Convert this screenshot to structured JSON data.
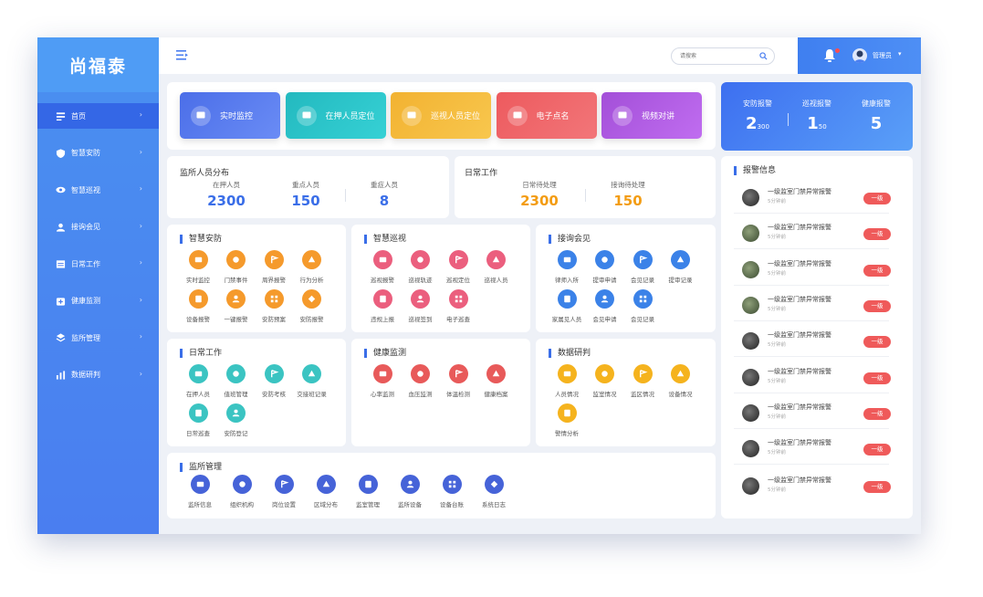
{
  "app": {
    "title": "尚福泰"
  },
  "sidebar": {
    "items": [
      {
        "label": "首页",
        "icon": "home-icon"
      },
      {
        "label": "智慧安防",
        "icon": "shield-icon"
      },
      {
        "label": "智慧巡视",
        "icon": "eye-icon"
      },
      {
        "label": "接询会见",
        "icon": "user-icon"
      },
      {
        "label": "日常工作",
        "icon": "calendar-icon"
      },
      {
        "label": "健康监测",
        "icon": "health-icon"
      },
      {
        "label": "监所管理",
        "icon": "layers-icon"
      },
      {
        "label": "数据研判",
        "icon": "chart-icon"
      }
    ]
  },
  "topbar": {
    "search_placeholder": "请搜索",
    "username": "管理员"
  },
  "quick": [
    {
      "label": "实时监控",
      "c1": "#4b6ee8",
      "c2": "#6a8cf5"
    },
    {
      "label": "在押人员定位",
      "c1": "#23b9bf",
      "c2": "#36d1d5"
    },
    {
      "label": "巡视人员定位",
      "c1": "#f2b231",
      "c2": "#f8c74e"
    },
    {
      "label": "电子点名",
      "c1": "#ed5a5e",
      "c2": "#f27679"
    },
    {
      "label": "视频对讲",
      "c1": "#a34fd8",
      "c2": "#c06df0"
    }
  ],
  "reports": [
    {
      "label": "安防报警",
      "value": "2",
      "sub": "300"
    },
    {
      "label": "巡视报警",
      "value": "1",
      "sub": "50"
    },
    {
      "label": "健康报警",
      "value": "5",
      "sub": ""
    }
  ],
  "distribution": {
    "title": "监所人员分布",
    "stats": [
      {
        "label": "在押人员",
        "value": "2300"
      },
      {
        "label": "重点人员",
        "value": "150"
      },
      {
        "label": "重症人员",
        "value": "8"
      }
    ]
  },
  "daily": {
    "title": "日常工作",
    "stats": [
      {
        "label": "日常待处理",
        "value": "2300"
      },
      {
        "label": "接询待处理",
        "value": "150"
      }
    ]
  },
  "modules": {
    "security": {
      "title": "智慧安防",
      "color": "#f59a2c",
      "items": [
        "实时监控",
        "门禁事件",
        "周界报警",
        "行为分析",
        "设备报警",
        "一键报警",
        "安防预案",
        "安防报警"
      ]
    },
    "patrol": {
      "title": "智慧巡视",
      "color": "#eb5f7e",
      "items": [
        "巡视报警",
        "巡视轨迹",
        "巡视定位",
        "巡视人员",
        "违规上报",
        "巡视签到",
        "电子巡查"
      ]
    },
    "meeting": {
      "title": "接询会见",
      "color": "#3b82e8",
      "items": [
        "律师入所",
        "提审申请",
        "会见记录",
        "提审记录",
        "家属见人员",
        "会见申请",
        "会见记录"
      ]
    },
    "daily_work": {
      "title": "日常工作",
      "color": "#3bc4c2",
      "items": [
        "在押人员",
        "值班管理",
        "安防考核",
        "交接班记录",
        "日常巡查",
        "安防登记"
      ]
    },
    "health": {
      "title": "健康监测",
      "color": "#e85a5a",
      "items": [
        "心率监测",
        "血压监测",
        "体温检测",
        "健康档案"
      ]
    },
    "data": {
      "title": "数据研判",
      "color": "#f5b31e",
      "items": [
        "人员情况",
        "监室情况",
        "监区情况",
        "设备情况",
        "警情分析"
      ]
    },
    "prison": {
      "title": "监所管理",
      "color": "#4663d8",
      "items": [
        "监所信息",
        "组织机构",
        "岗位设置",
        "区域分布",
        "监室管理",
        "监所设备",
        "设备台账",
        "系统日志"
      ]
    }
  },
  "warnings": {
    "title": "报警信息",
    "items": [
      {
        "text": "一级监室门禁异常报警",
        "time": "5分钟前",
        "badge": "一级"
      },
      {
        "text": "一级监室门禁异常报警",
        "time": "5分钟前",
        "badge": "一级"
      },
      {
        "text": "一级监室门禁异常报警",
        "time": "5分钟前",
        "badge": "一级"
      },
      {
        "text": "一级监室门禁异常报警",
        "time": "5分钟前",
        "badge": "一级"
      },
      {
        "text": "一级监室门禁异常报警",
        "time": "5分钟前",
        "badge": "一级"
      },
      {
        "text": "一级监室门禁异常报警",
        "time": "5分钟前",
        "badge": "一级"
      },
      {
        "text": "一级监室门禁异常报警",
        "time": "5分钟前",
        "badge": "一级"
      },
      {
        "text": "一级监室门禁异常报警",
        "time": "5分钟前",
        "badge": "一级"
      },
      {
        "text": "一级监室门禁异常报警",
        "time": "5分钟前",
        "badge": "一级"
      }
    ]
  }
}
